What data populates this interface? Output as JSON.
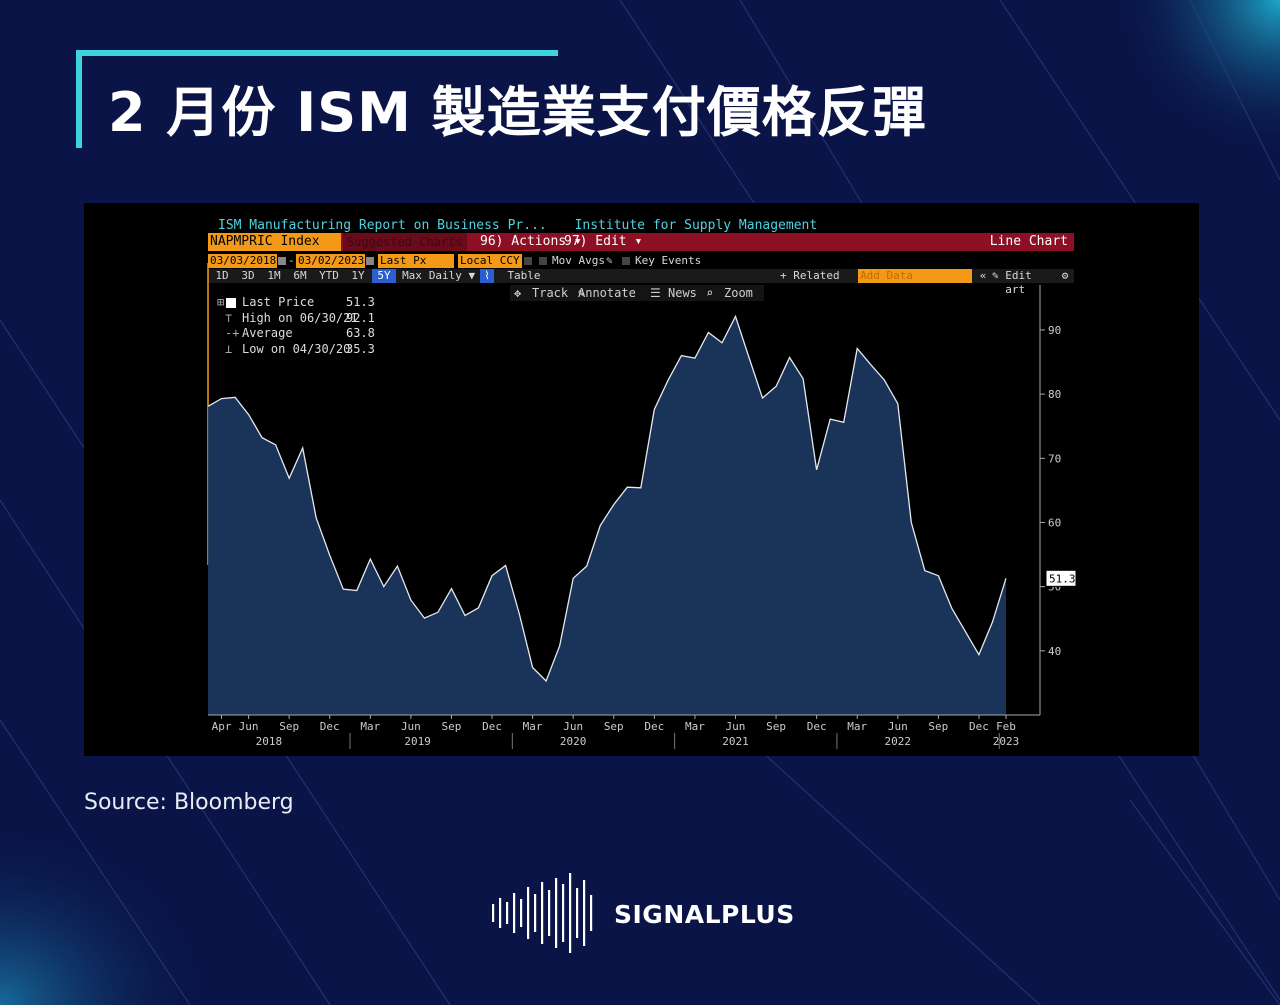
{
  "slide": {
    "title": "2 月份 ISM 製造業支付價格反彈",
    "source": "Source:  Bloomberg",
    "brand": "SIGNALPLUS",
    "colors": {
      "background": "#0a1447",
      "accent": "#3fd3e0",
      "terminal_bg": "#000000"
    }
  },
  "terminal": {
    "header_left": "ISM Manufacturing Report on Business Pr...",
    "header_right": "Institute for Supply Management",
    "ticker": "NAPMPRIC Index",
    "suggested": "Suggested Charts",
    "actions": "96) Actions ▾",
    "edit": "97) Edit ▾",
    "chart_type": "Line Chart",
    "start_date": "03/03/2018",
    "end_date": "03/02/2023",
    "field": "Last Px",
    "currency": "Local CCY",
    "mov_avgs": "Mov Avgs",
    "key_events": "Key Events",
    "ranges": [
      "1D",
      "3D",
      "1M",
      "6M",
      "YTD",
      "1Y",
      "5Y",
      "Max",
      "Daily ▼"
    ],
    "selected_range": "5Y",
    "table_label": "Table",
    "related": "+ Related Dat",
    "add_data": "Add Data",
    "edit_chart": "Edit Chart",
    "tools": {
      "track": "Track",
      "annotate": "Annotate",
      "news": "News",
      "zoom": "Zoom"
    },
    "legend": [
      {
        "label": "Last Price",
        "value": "51.3"
      },
      {
        "label": "High on 06/30/21",
        "value": "92.1"
      },
      {
        "label": "Average",
        "value": "63.8"
      },
      {
        "label": "Low on 04/30/20",
        "value": "35.3"
      }
    ],
    "colors": {
      "orange": "#f29a18",
      "red_bar": "#8c0f24",
      "cyan_text": "#4fd2e0",
      "series_line": "#e6e9f0",
      "series_fill": "#1d3a63"
    }
  },
  "chart_data": {
    "type": "area",
    "series": [
      {
        "name": "Last Price",
        "x": [
          "2018-03",
          "2018-04",
          "2018-05",
          "2018-06",
          "2018-07",
          "2018-08",
          "2018-09",
          "2018-10",
          "2018-11",
          "2018-12",
          "2019-01",
          "2019-02",
          "2019-03",
          "2019-04",
          "2019-05",
          "2019-06",
          "2019-07",
          "2019-08",
          "2019-09",
          "2019-10",
          "2019-11",
          "2019-12",
          "2020-01",
          "2020-02",
          "2020-03",
          "2020-04",
          "2020-05",
          "2020-06",
          "2020-07",
          "2020-08",
          "2020-09",
          "2020-10",
          "2020-11",
          "2020-12",
          "2021-01",
          "2021-02",
          "2021-03",
          "2021-04",
          "2021-05",
          "2021-06",
          "2021-07",
          "2021-08",
          "2021-09",
          "2021-10",
          "2021-11",
          "2021-12",
          "2022-01",
          "2022-02",
          "2022-03",
          "2022-04",
          "2022-05",
          "2022-06",
          "2022-07",
          "2022-08",
          "2022-09",
          "2022-10",
          "2022-11",
          "2022-12",
          "2023-01",
          "2023-02"
        ],
        "values": [
          78.1,
          79.3,
          79.5,
          76.8,
          73.2,
          72.1,
          66.9,
          71.6,
          60.7,
          54.9,
          49.6,
          49.4,
          54.3,
          50.0,
          53.2,
          47.9,
          45.1,
          46.0,
          49.7,
          45.5,
          46.7,
          51.7,
          53.3,
          45.9,
          37.4,
          35.3,
          40.8,
          51.3,
          53.2,
          59.5,
          62.8,
          65.5,
          65.4,
          77.6,
          82.1,
          86.0,
          85.6,
          89.6,
          88.0,
          92.1,
          85.7,
          79.4,
          81.2,
          85.7,
          82.4,
          68.2,
          76.1,
          75.6,
          87.1,
          84.6,
          82.2,
          78.5,
          60.0,
          52.5,
          51.7,
          46.6,
          43.0,
          39.4,
          44.5,
          51.3
        ]
      }
    ],
    "ylim": [
      30,
      97
    ],
    "yticks": [
      40,
      50,
      60,
      70,
      80,
      90
    ],
    "last_value_label": "51.3",
    "x_month_labels": [
      "Apr",
      "Jun",
      "Sep",
      "Dec",
      "Mar",
      "Jun",
      "Sep",
      "Dec",
      "Mar",
      "Jun",
      "Sep",
      "Dec",
      "Mar",
      "Jun",
      "Sep",
      "Dec",
      "Mar",
      "Jun",
      "Sep",
      "Dec",
      "Feb"
    ],
    "x_year_labels": [
      "2018",
      "2019",
      "2020",
      "2021",
      "2022",
      "2023"
    ],
    "grid": false,
    "legend_position": "top-left"
  }
}
